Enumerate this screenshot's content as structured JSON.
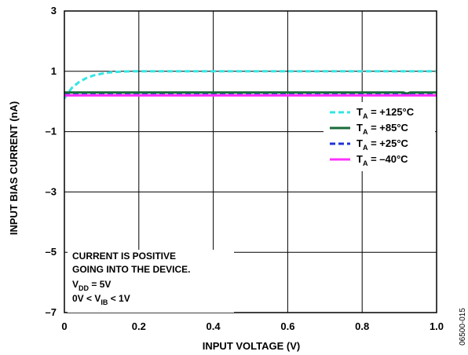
{
  "chart_data": {
    "type": "line",
    "xlabel": "INPUT VOLTAGE (V)",
    "ylabel": "INPUT BIAS CURRENT (nA)",
    "xlim": [
      0,
      1.0
    ],
    "ylim": [
      -7,
      3
    ],
    "x_ticks": [
      "0",
      "0.2",
      "0.4",
      "0.6",
      "0.8",
      "1.0"
    ],
    "y_ticks": [
      "3",
      "1",
      "–1",
      "–3",
      "–5",
      "–7"
    ],
    "grid": true,
    "legend_position": "right",
    "series": [
      {
        "name": "T_A = +125°C",
        "legend": {
          "main": "T",
          "sub": "A",
          "rest": " = +125°C"
        },
        "color": "#33e5e5",
        "dash": "dashed",
        "x": [
          0,
          0.01,
          0.02,
          0.04,
          0.06,
          0.08,
          0.1,
          0.12,
          0.15,
          0.18,
          0.2,
          0.4,
          0.6,
          0.8,
          1.0
        ],
        "y": [
          0.1,
          0.28,
          0.45,
          0.65,
          0.78,
          0.87,
          0.92,
          0.96,
          0.99,
          1.0,
          1.0,
          1.0,
          1.0,
          1.0,
          1.0
        ]
      },
      {
        "name": "T_A = +85°C",
        "legend": {
          "main": "T",
          "sub": "A",
          "rest": " = +85°C"
        },
        "color": "#1a6b3a",
        "dash": "solid",
        "x": [
          0,
          0.2,
          0.4,
          0.6,
          0.8,
          0.91,
          0.92,
          0.93,
          1.0
        ],
        "y": [
          0.3,
          0.3,
          0.3,
          0.3,
          0.3,
          0.3,
          0.26,
          0.3,
          0.3
        ]
      },
      {
        "name": "T_A = +25°C",
        "legend": {
          "main": "T",
          "sub": "A",
          "rest": " = +25°C"
        },
        "color": "#1f33d6",
        "dash": "dashed",
        "x": [
          0,
          0.2,
          0.4,
          0.6,
          0.8,
          1.0
        ],
        "y": [
          0.22,
          0.22,
          0.22,
          0.22,
          0.22,
          0.22
        ]
      },
      {
        "name": "T_A = –40°C",
        "legend": {
          "main": "T",
          "sub": "A",
          "rest": " = –40°C"
        },
        "color": "#ff33ff",
        "dash": "solid",
        "x": [
          0,
          0.2,
          0.4,
          0.6,
          0.8,
          1.0
        ],
        "y": [
          0.2,
          0.2,
          0.2,
          0.2,
          0.2,
          0.2
        ]
      }
    ],
    "annotation": {
      "line1": "CURRENT IS POSITIVE",
      "line2": "GOING INTO THE DEVICE.",
      "line3": {
        "main": "V",
        "sub": "DD",
        "rest": " = 5V"
      },
      "line4": {
        "pre": "0V < V",
        "sub": "IB",
        "rest": " < 1V"
      }
    },
    "figure_id": "06500-015"
  }
}
